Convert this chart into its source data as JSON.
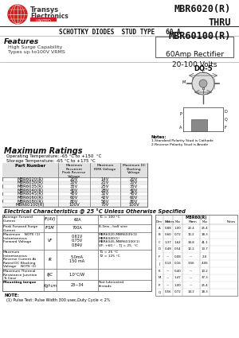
{
  "title_model": "MBR6020(R)\nTHRU\nMBR60100(R)",
  "subtitle": "SCHOTTKY DIODES  STUD TYPE   60 A",
  "company_name": "Transys\nElectronics",
  "company_sub": "LIMITED",
  "features_title": "Features",
  "features": [
    "High Surge Capability",
    "Types up to100V VRMS"
  ],
  "rectifier_box": "60Amp Rectifier\n20-100 Volts",
  "package": "DO-5",
  "max_ratings_title": "Maximum Ratings",
  "max_ratings": [
    "Operating Temperature: -65 °C to +150  °C",
    "Storage Temperature: -65 °C to +175 °C"
  ],
  "table_headers": [
    "Part Number",
    "Maximum\nRecurrent\nPeak Reverse\nVoltage",
    "Maximum\nRMS Voltage",
    "Maximum DC\nBlocking\nVoltage"
  ],
  "table_rows": [
    [
      "MBR6020(R)",
      "20V",
      "14V",
      "20V"
    ],
    [
      "MBR6030(R)",
      "30V",
      "21V",
      "30V"
    ],
    [
      "MBR6035(R)",
      "35V",
      "25V",
      "35V"
    ],
    [
      "MBR6040(R)",
      "40V",
      "28V",
      "40V"
    ],
    [
      "MBR6045(R)",
      "45V",
      "32V",
      "45V"
    ],
    [
      "MBR6060(R)",
      "60V",
      "42V",
      "60V"
    ],
    [
      "MBR6080(R)",
      "80V",
      "56V",
      "80V"
    ],
    [
      "MBR60100(R)",
      "100V",
      "70V",
      "100V"
    ]
  ],
  "elec_title": "Electrical Characteristics @ 25 °C Unless Otherwise Specified",
  "elec_rows": [
    [
      "Average Forward\nCurrent",
      "IF(AV)",
      "60A",
      "TC = 100 °C"
    ],
    [
      "Peak Forward Surge\nCurrent",
      "IFSM",
      "700A",
      "8.3ms , half sine"
    ],
    [
      "Maximum    NOTE (1)\nInstantaneous\nForward Voltage",
      "VF",
      "0.61V\n0.75V\n0.84V",
      "MBR6020-MBR6035(1)\nMBR6040(1)\nMBR6045-MBR60100(1)\nVF: +60 ° - TJ = 25  °C"
    ],
    [
      "Maximum\nInstantaneous\nReverse Current At\nRated DC Blocking\nVoltage    NOTE (1)",
      "IR",
      "5.0mA\n150 mA",
      "T1 = 25 °C\nT2 = 125 °C"
    ],
    [
      "Maximum Thermal\nResistance Junction\nTo Case",
      "θJC",
      "1.0°C/W",
      ""
    ],
    [
      "Mounting torque",
      "Kgf-cm",
      "23~34",
      "Not lubricated\nthreads"
    ]
  ],
  "note": "NOTE:\n  (1) Pulse Test: Pulse Width 300 usec,Duty Cycle < 2%",
  "bg_color": "#ffffff",
  "text_color": "#000000",
  "table_line_color": "#888888",
  "header_bg": "#d0d0d0"
}
